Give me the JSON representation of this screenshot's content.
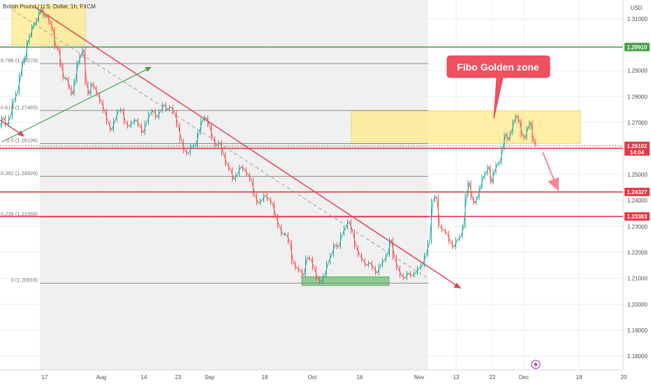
{
  "chart_data": {
    "type": "candlestick",
    "title": "British Pound / U.S. Dollar, 1h, FXCM",
    "price_axis_unit": "USD",
    "x_ticks": [
      "17",
      "Aug",
      "14",
      "23",
      "Sep",
      "18",
      "Oct",
      "16",
      "Nov",
      "13",
      "22",
      "Dec",
      "18",
      "20"
    ],
    "y_ticks": [
      "1.31000",
      "1.30000",
      "1.29000",
      "1.28000",
      "1.27000",
      "1.26000",
      "1.25000",
      "1.24000",
      "1.23000",
      "1.22000",
      "1.21000",
      "1.20000",
      "1.19000",
      "1.18000"
    ],
    "ylim": [
      1.1725,
      1.314
    ],
    "fib_levels": [
      {
        "label": "0.786 (1.29270)",
        "value": 1.2927
      },
      {
        "label": "0.618 (1.27465)",
        "value": 1.27465
      },
      {
        "label": "0.5 (1.26196)",
        "value": 1.26196
      },
      {
        "label": "0.382 (1.24926)",
        "value": 1.24926
      },
      {
        "label": "0.236 (1.23356)",
        "value": 1.23356
      },
      {
        "label": "0 (1.20816)",
        "value": 1.20816
      }
    ],
    "horizontal_levels": [
      {
        "label": "1.29910",
        "value": 1.2991,
        "color": "#43a047"
      },
      {
        "label": "1.26008",
        "value": 1.26008,
        "color": "#e53945"
      },
      {
        "label": "1.24327",
        "value": 1.24327,
        "color": "#e53945"
      },
      {
        "label": "1.23383",
        "value": 1.23383,
        "color": "#e53945"
      }
    ],
    "last_price": {
      "label": "1.26102",
      "countdown": "14:04",
      "value": 1.26102,
      "color": "#e53945"
    },
    "annotation": {
      "text": "Fibo Golden zone"
    },
    "zones": [
      {
        "name": "top-zone",
        "color": "#ffe98a",
        "price_top": 1.3153,
        "price_bottom": 1.2999
      },
      {
        "name": "golden-zone",
        "color": "#ffe98a",
        "price_top": 1.2745,
        "price_bottom": 1.2619
      },
      {
        "name": "bottom-zone",
        "color": "#7cc47f",
        "price_top": 1.2106,
        "price_bottom": 1.2072
      }
    ],
    "path": [
      [
        0,
        1.2685
      ],
      [
        5,
        1.272
      ],
      [
        10,
        1.269
      ],
      [
        15,
        1.272
      ],
      [
        20,
        1.2785
      ],
      [
        25,
        1.2812
      ],
      [
        30,
        1.2885
      ],
      [
        33,
        1.293
      ],
      [
        37,
        1.295
      ],
      [
        40,
        1.301
      ],
      [
        44,
        1.3035
      ],
      [
        47,
        1.307
      ],
      [
        50,
        1.308
      ],
      [
        54,
        1.3095
      ],
      [
        57,
        1.3125
      ],
      [
        60,
        1.3135
      ],
      [
        64,
        1.311
      ],
      [
        68,
        1.311
      ],
      [
        72,
        1.3085
      ],
      [
        76,
        1.306
      ],
      [
        80,
        1.299
      ],
      [
        84,
        1.2985
      ],
      [
        88,
        1.292
      ],
      [
        92,
        1.287
      ],
      [
        96,
        1.287
      ],
      [
        100,
        1.2835
      ],
      [
        104,
        1.281
      ],
      [
        108,
        1.286
      ],
      [
        112,
        1.293
      ],
      [
        116,
        1.296
      ],
      [
        120,
        1.298
      ],
      [
        124,
        1.285
      ],
      [
        128,
        1.281
      ],
      [
        132,
        1.285
      ],
      [
        136,
        1.2835
      ],
      [
        140,
        1.281
      ],
      [
        145,
        1.278
      ],
      [
        150,
        1.2745
      ],
      [
        155,
        1.27
      ],
      [
        160,
        1.267
      ],
      [
        165,
        1.271
      ],
      [
        170,
        1.2745
      ],
      [
        175,
        1.275
      ],
      [
        180,
        1.27
      ],
      [
        185,
        1.2685
      ],
      [
        190,
        1.27
      ],
      [
        195,
        1.271
      ],
      [
        200,
        1.269
      ],
      [
        205,
        1.266
      ],
      [
        210,
        1.27
      ],
      [
        215,
        1.2735
      ],
      [
        220,
        1.2745
      ],
      [
        225,
        1.272
      ],
      [
        230,
        1.2745
      ],
      [
        235,
        1.277
      ],
      [
        240,
        1.275
      ],
      [
        245,
        1.276
      ],
      [
        250,
        1.274
      ],
      [
        255,
        1.269
      ],
      [
        260,
        1.263
      ],
      [
        265,
        1.259
      ],
      [
        270,
        1.258
      ],
      [
        275,
        1.261
      ],
      [
        280,
        1.261
      ],
      [
        285,
        1.266
      ],
      [
        290,
        1.271
      ],
      [
        295,
        1.272
      ],
      [
        300,
        1.269
      ],
      [
        305,
        1.264
      ],
      [
        310,
        1.261
      ],
      [
        315,
        1.2625
      ],
      [
        320,
        1.258
      ],
      [
        325,
        1.254
      ],
      [
        330,
        1.252
      ],
      [
        335,
        1.248
      ],
      [
        340,
        1.25
      ],
      [
        345,
        1.253
      ],
      [
        350,
        1.252
      ],
      [
        355,
        1.25
      ],
      [
        360,
        1.248
      ],
      [
        365,
        1.242
      ],
      [
        370,
        1.239
      ],
      [
        375,
        1.24
      ],
      [
        380,
        1.242
      ],
      [
        385,
        1.2405
      ],
      [
        390,
        1.239
      ],
      [
        395,
        1.234
      ],
      [
        400,
        1.23
      ],
      [
        405,
        1.227
      ],
      [
        410,
        1.227
      ],
      [
        415,
        1.224
      ],
      [
        420,
        1.216
      ],
      [
        425,
        1.214
      ],
      [
        430,
        1.213
      ],
      [
        435,
        1.211
      ],
      [
        440,
        1.218
      ],
      [
        445,
        1.2175
      ],
      [
        450,
        1.214
      ],
      [
        455,
        1.21
      ],
      [
        460,
        1.2085
      ],
      [
        465,
        1.211
      ],
      [
        470,
        1.216
      ],
      [
        475,
        1.219
      ],
      [
        480,
        1.223
      ],
      [
        485,
        1.222
      ],
      [
        490,
        1.227
      ],
      [
        495,
        1.2295
      ],
      [
        500,
        1.232
      ],
      [
        505,
        1.228
      ],
      [
        510,
        1.222
      ],
      [
        515,
        1.219
      ],
      [
        520,
        1.217
      ],
      [
        525,
        1.215
      ],
      [
        530,
        1.216
      ],
      [
        535,
        1.214
      ],
      [
        540,
        1.212
      ],
      [
        545,
        1.215
      ],
      [
        550,
        1.217
      ],
      [
        555,
        1.219
      ],
      [
        560,
        1.225
      ],
      [
        565,
        1.218
      ],
      [
        570,
        1.214
      ],
      [
        575,
        1.211
      ],
      [
        580,
        1.21
      ],
      [
        585,
        1.212
      ],
      [
        590,
        1.211
      ],
      [
        595,
        1.212
      ],
      [
        600,
        1.214
      ],
      [
        605,
        1.215
      ],
      [
        610,
        1.219
      ],
      [
        615,
        1.224
      ],
      [
        620,
        1.24
      ],
      [
        625,
        1.2415
      ],
      [
        630,
        1.23
      ],
      [
        635,
        1.2285
      ],
      [
        640,
        1.2275
      ],
      [
        645,
        1.224
      ],
      [
        650,
        1.222
      ],
      [
        655,
        1.225
      ],
      [
        660,
        1.226
      ],
      [
        664,
        1.23
      ],
      [
        668,
        1.242
      ],
      [
        672,
        1.247
      ],
      [
        676,
        1.241
      ],
      [
        680,
        1.239
      ],
      [
        684,
        1.241
      ],
      [
        688,
        1.245
      ],
      [
        692,
        1.249
      ],
      [
        696,
        1.2505
      ],
      [
        700,
        1.253
      ],
      [
        704,
        1.247
      ],
      [
        708,
        1.251
      ],
      [
        712,
        1.254
      ],
      [
        716,
        1.2545
      ],
      [
        720,
        1.26
      ],
      [
        724,
        1.2655
      ],
      [
        728,
        1.2635
      ],
      [
        732,
        1.266
      ],
      [
        736,
        1.2705
      ],
      [
        740,
        1.2725
      ],
      [
        744,
        1.2705
      ],
      [
        748,
        1.265
      ],
      [
        752,
        1.264
      ],
      [
        756,
        1.268
      ],
      [
        760,
        1.27
      ],
      [
        764,
        1.263
      ],
      [
        768,
        1.2615
      ]
    ]
  }
}
